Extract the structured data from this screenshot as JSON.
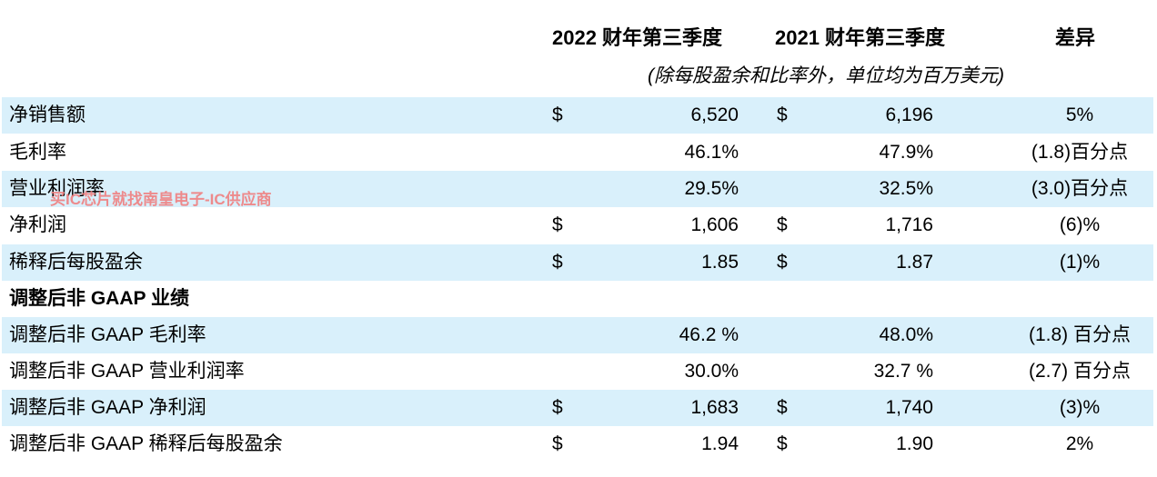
{
  "header": {
    "col1": "2022 财年第三季度",
    "col2": "2021 财年第三季度",
    "col3": "差异",
    "subtitle": "(除每股盈余和比率外，单位均为百万美元)"
  },
  "rows": [
    {
      "label": "净销售额",
      "d1": "$",
      "v1": "6,520",
      "d2": "$",
      "v2": "6,196",
      "diff": "5%"
    },
    {
      "label": "毛利率",
      "d1": "",
      "v1": "46.1%",
      "d2": "",
      "v2": "47.9%",
      "diff": "(1.8)百分点"
    },
    {
      "label": "营业利润率",
      "d1": "",
      "v1": "29.5%",
      "d2": "",
      "v2": "32.5%",
      "diff": "(3.0)百分点"
    },
    {
      "label": "净利润",
      "d1": "$",
      "v1": "1,606",
      "d2": "$",
      "v2": "1,716",
      "diff": "(6)%"
    },
    {
      "label": "稀释后每股盈余",
      "d1": "$",
      "v1": "1.85",
      "d2": "$",
      "v2": "1.87",
      "diff": "(1)%"
    },
    {
      "label": "调整后非 GAAP 业绩",
      "d1": "",
      "v1": "",
      "d2": "",
      "v2": "",
      "diff": ""
    },
    {
      "label": "调整后非 GAAP 毛利率",
      "d1": "",
      "v1": "46.2 %",
      "d2": "",
      "v2": "48.0%",
      "diff": "(1.8) 百分点"
    },
    {
      "label": "调整后非 GAAP 营业利润率",
      "d1": "",
      "v1": "30.0%",
      "d2": "",
      "v2": "32.7 %",
      "diff": "(2.7) 百分点"
    },
    {
      "label": "调整后非 GAAP 净利润",
      "d1": "$",
      "v1": "1,683",
      "d2": "$",
      "v2": "1,740",
      "diff": "(3)%"
    },
    {
      "label": "调整后非 GAAP 稀释后每股盈余",
      "d1": "$",
      "v1": "1.94",
      "d2": "$",
      "v2": "1.90",
      "diff": "2%"
    }
  ],
  "watermark": "买IC芯片就找南皇电子-IC供应商",
  "colors": {
    "row_highlight": "#d9f0fb",
    "watermark": "#f08080"
  }
}
